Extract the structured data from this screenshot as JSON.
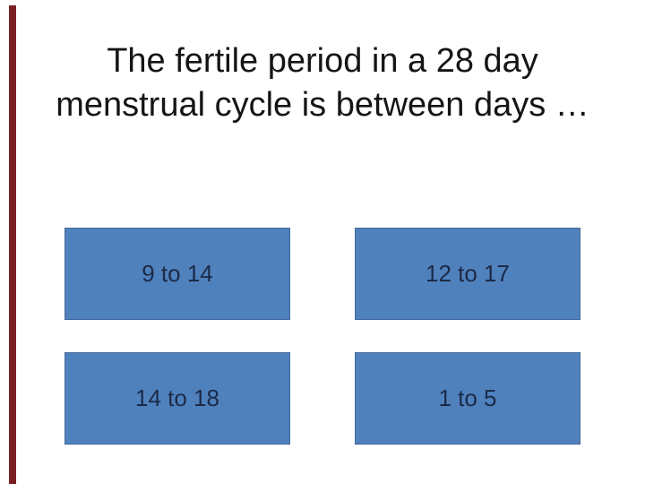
{
  "slide": {
    "title": {
      "line1": "The fertile period in a 28 day",
      "line2": "menstrual cycle is between days …"
    },
    "answers": [
      {
        "label": "9 to 14"
      },
      {
        "label": "12 to 17"
      },
      {
        "label": "14 to 18"
      },
      {
        "label": "1 to 5"
      }
    ],
    "colors": {
      "background": "#ffffff",
      "accent_bar": "#7b2022",
      "title_text": "#151515",
      "answer_box": "#4f81bd",
      "answer_text": "#1c2a47"
    }
  }
}
